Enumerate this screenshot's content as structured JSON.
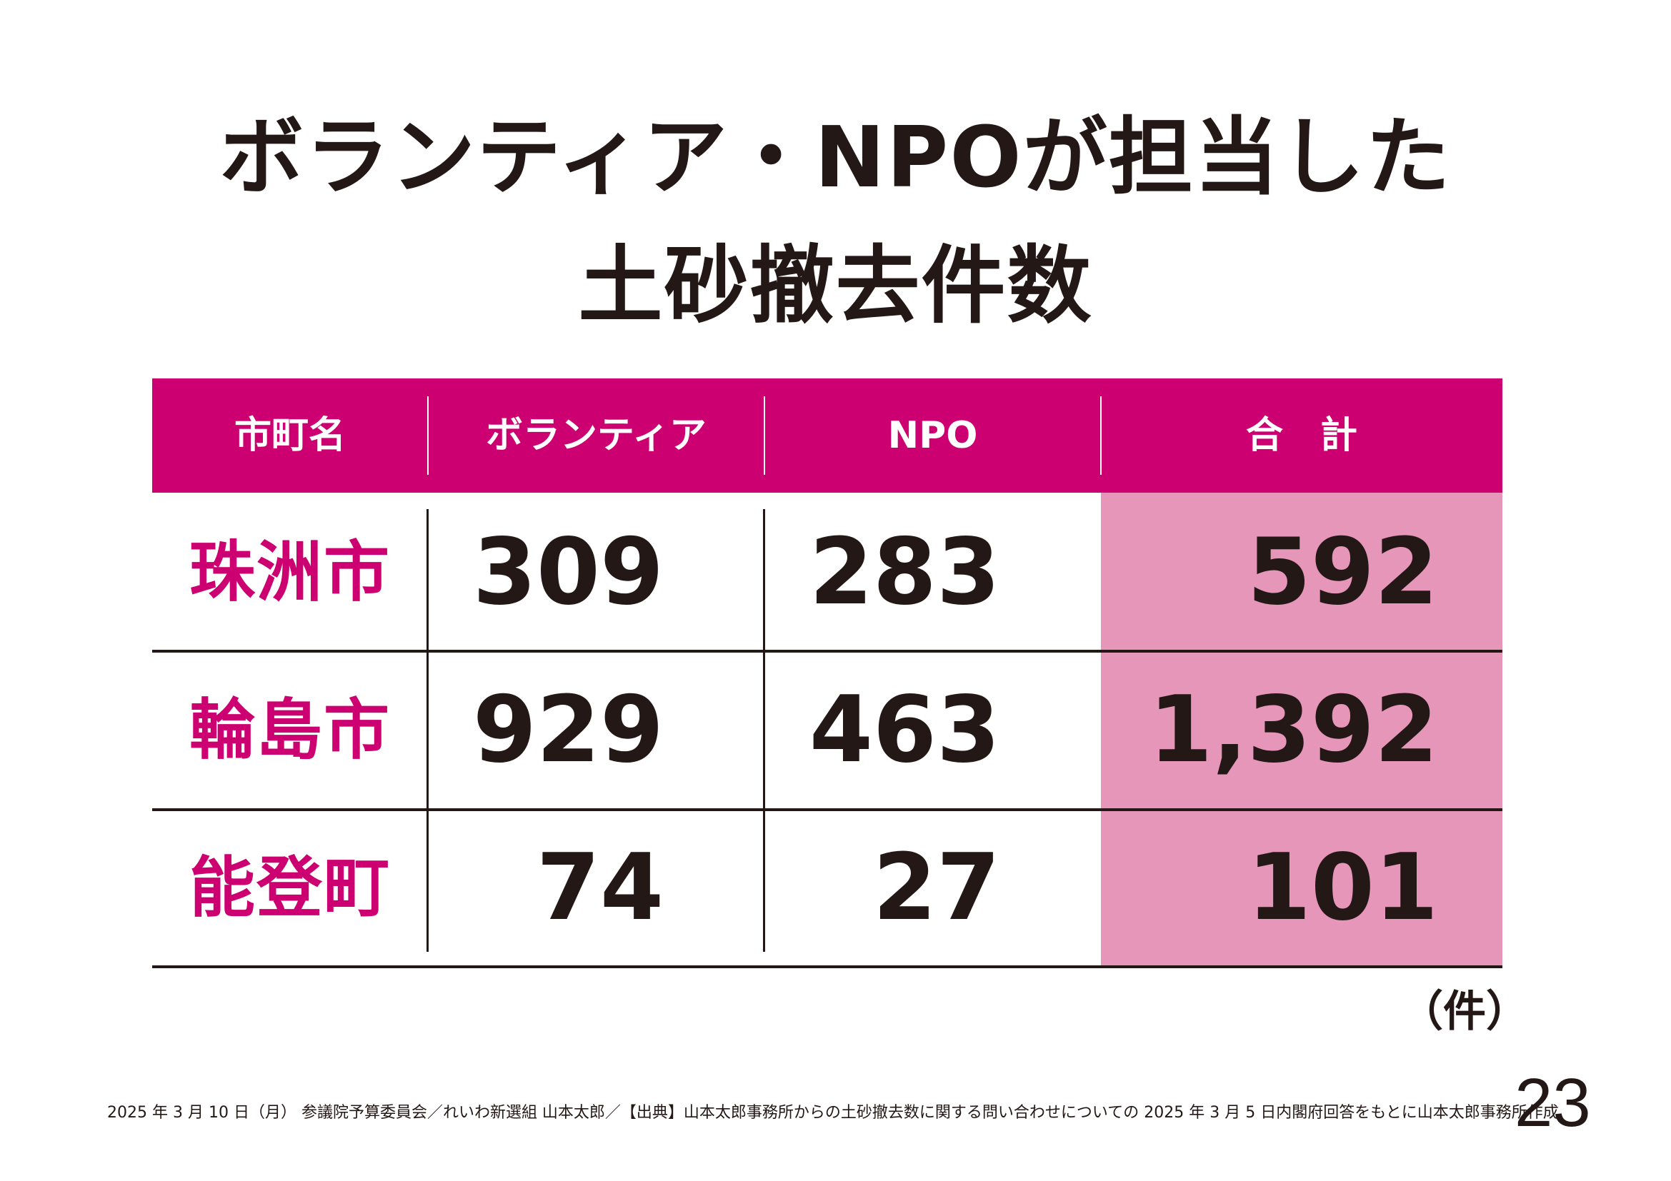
{
  "title": {
    "line1": "ボランティア・NPOが担当した",
    "line2": "土砂撤去件数"
  },
  "table": {
    "headers": [
      "市町名",
      "ボランティア",
      "NPO",
      "合　計"
    ],
    "rows": [
      {
        "city": "珠洲市",
        "volunteer": "309",
        "npo": "283",
        "total": "592"
      },
      {
        "city": "輪島市",
        "volunteer": "929",
        "npo": "463",
        "total": "1,392"
      },
      {
        "city": "能登町",
        "volunteer": "74",
        "npo": "27",
        "total": "101"
      }
    ],
    "unit": "（件）"
  },
  "footer": {
    "source": "2025 年 3 月 10 日（月） 参議院予算委員会／れいわ新選組 山本太郎／【出典】山本太郎事務所からの土砂撤去数に関する問い合わせについての 2025 年 3 月 5 日内閣府回答をもとに山本太郎事務所作成",
    "page_number": "23"
  },
  "colors": {
    "accent": "#cc0070",
    "total_highlight": "#e596b9",
    "text": "#231815",
    "background": "#ffffff"
  }
}
